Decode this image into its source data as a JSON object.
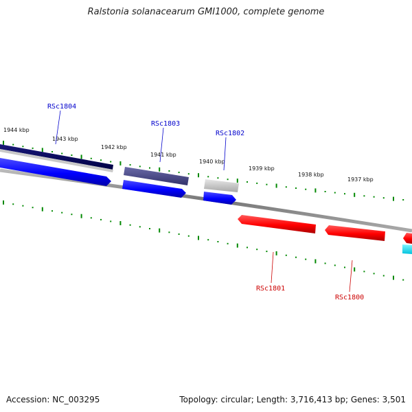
{
  "title": "Ralstonia solanacearum GMI1000, complete genome",
  "footer": {
    "accession": "Accession: NC_003295",
    "summary": "Topology: circular; Length: 3,716,413 bp; Genes: 3,501"
  },
  "scale_labels": [
    "1944 kbp",
    "1943 kbp",
    "1942 kbp",
    "1941 kbp",
    "1940 kbp",
    "1939 kbp",
    "1938 kbp",
    "1937 kbp"
  ],
  "genes": [
    {
      "id": "RSc1804",
      "strand": "forward",
      "color": "#0000cc"
    },
    {
      "id": "RSc1803",
      "strand": "forward",
      "color": "#0000cc"
    },
    {
      "id": "RSc1802",
      "strand": "forward",
      "color": "#0000cc"
    },
    {
      "id": "RSc1801",
      "strand": "reverse",
      "color": "#cc0000"
    },
    {
      "id": "RSc1800",
      "strand": "reverse",
      "color": "#cc0000"
    }
  ],
  "colors": {
    "forward_cds": "#0000ff",
    "reverse_cds": "#ff0000",
    "tick": "#008800",
    "backbone": "#888888",
    "feature_dark_navy": "#000066",
    "feature_slate": "#4a4a8a",
    "feature_gray": "#c0c0c0",
    "feature_cyan": "#00e5ff"
  }
}
